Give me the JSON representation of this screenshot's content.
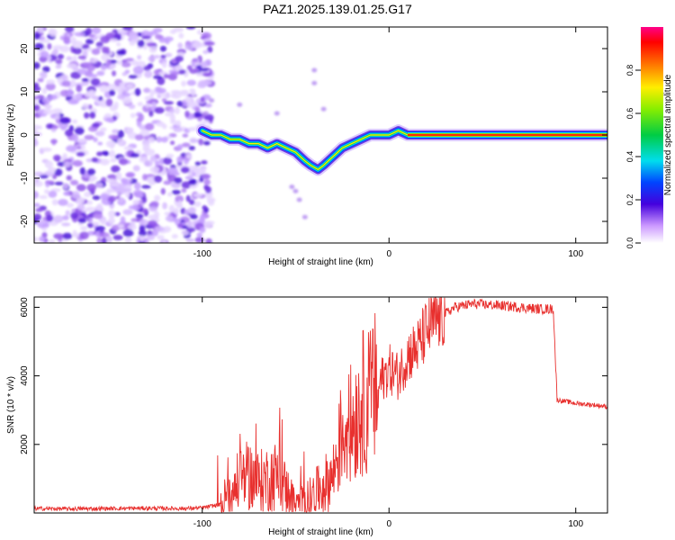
{
  "title": "PAZ1.2025.139.01.25.G17",
  "chart_data": [
    {
      "type": "heatmap",
      "xlabel": "Height of straight line (km)",
      "ylabel": "Frequency (Hz)",
      "xlim": [
        -190,
        117
      ],
      "ylim": [
        -25,
        25
      ],
      "xticks": [
        -100,
        0,
        100
      ],
      "xtick_labels": [
        "-100",
        "0",
        "100"
      ],
      "yticks": [
        -20,
        -10,
        0,
        10,
        20
      ],
      "ytick_labels": [
        "-20",
        "-10",
        "0",
        "10",
        "20"
      ],
      "colorbar": {
        "label": "Normalized spectral amplitude",
        "range": [
          0,
          1
        ],
        "ticks": [
          "0.0",
          "0.2",
          "0.4",
          "0.6",
          "0.8"
        ]
      },
      "ridge": {
        "x": [
          -100,
          -95,
          -90,
          -85,
          -80,
          -75,
          -70,
          -65,
          -60,
          -55,
          -50,
          -45,
          -42,
          -38,
          -35,
          -30,
          -25,
          -20,
          -15,
          -10,
          -5,
          0,
          5,
          10,
          15,
          117
        ],
        "y": [
          1,
          0,
          0,
          -1,
          -1,
          -2,
          -2,
          -3,
          -2,
          -3,
          -4,
          -6,
          -7,
          -8,
          -7,
          -5,
          -3,
          -2,
          -1,
          0,
          0,
          0,
          1,
          0,
          0,
          0
        ]
      },
      "noise_region": {
        "x_from": -190,
        "x_to": -95,
        "note": "scattered low-amplitude speckle"
      },
      "grid": false
    },
    {
      "type": "line",
      "xlabel": "Height of straight line (km)",
      "ylabel": "SNR (10 * v/v)",
      "xlim": [
        -190,
        117
      ],
      "ylim": [
        0,
        6300
      ],
      "xticks": [
        -100,
        0,
        100
      ],
      "xtick_labels": [
        "-100",
        "0",
        "100"
      ],
      "yticks": [
        2000,
        4000,
        6000
      ],
      "ytick_labels": [
        "2000",
        "4000",
        "6000"
      ],
      "color": "#e8302e",
      "series": [
        {
          "x": [
            -190,
            -170,
            -150,
            -130,
            -110,
            -100,
            -90,
            -85,
            -80,
            -75,
            -70,
            -65,
            -60,
            -55,
            -50,
            -45,
            -40,
            -35,
            -30,
            -25,
            -20,
            -15,
            -10,
            -5,
            0,
            5,
            10,
            15,
            20,
            25,
            30,
            35,
            40,
            45,
            50,
            60,
            70,
            80,
            88,
            90,
            95,
            100,
            110,
            117
          ],
          "y": [
            130,
            120,
            130,
            140,
            130,
            150,
            250,
            700,
            900,
            1100,
            900,
            1000,
            1100,
            700,
            200,
            350,
            550,
            800,
            1100,
            2400,
            2600,
            3200,
            3300,
            3800,
            4200,
            4000,
            4600,
            4800,
            5300,
            5600,
            5800,
            6000,
            6050,
            6100,
            6080,
            6050,
            6000,
            5950,
            5950,
            3300,
            3250,
            3200,
            3150,
            3100
          ]
        }
      ],
      "grid": false
    }
  ]
}
